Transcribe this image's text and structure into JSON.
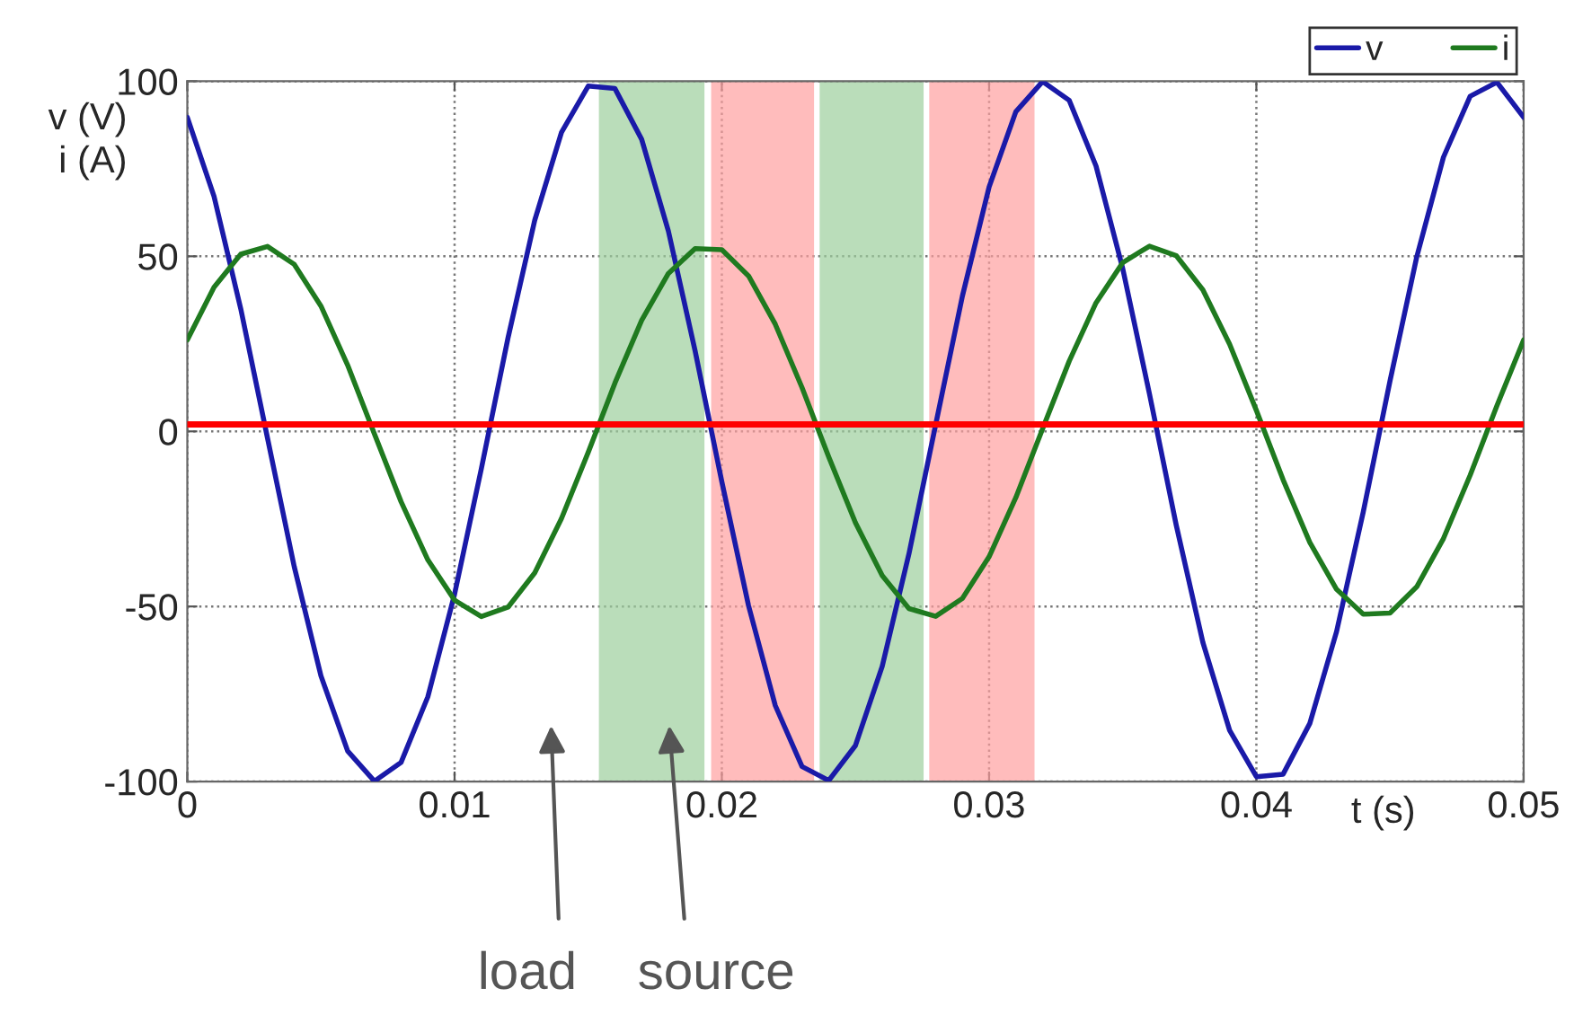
{
  "chart_data": {
    "type": "line",
    "xlabel": "t (s)",
    "ylabel": "v (V)\ni (A)",
    "x": [
      0,
      0.001,
      0.002,
      0.003,
      0.004,
      0.005,
      0.006,
      0.007,
      0.008,
      0.009,
      0.01,
      0.011,
      0.012,
      0.013,
      0.014,
      0.015,
      0.016,
      0.017,
      0.018,
      0.019,
      0.02,
      0.021,
      0.022,
      0.023,
      0.024,
      0.025,
      0.026,
      0.027,
      0.028,
      0.029,
      0.03,
      0.031,
      0.032,
      0.033,
      0.034,
      0.035,
      0.036,
      0.037,
      0.038,
      0.039,
      0.04,
      0.041,
      0.042,
      0.043,
      0.044,
      0.045,
      0.046,
      0.047,
      0.048,
      0.049,
      0.05
    ],
    "series": [
      {
        "name": "v",
        "color": "#1a1aa8",
        "values": [
          89.7,
          67.1,
          35.0,
          -1.9,
          -38.6,
          -69.8,
          -91.3,
          -99.9,
          -94.5,
          -75.8,
          -46.5,
          -10.7,
          26.7,
          60.3,
          85.4,
          98.6,
          97.9,
          83.4,
          57.2,
          23.0,
          -14.4,
          -49.8,
          -78.3,
          -95.7,
          -99.7,
          -89.7,
          -67.1,
          -35.0,
          1.9,
          38.6,
          69.8,
          91.3,
          99.9,
          94.5,
          75.8,
          46.5,
          10.7,
          -26.7,
          -60.3,
          -85.4,
          -98.6,
          -97.9,
          -83.4,
          -57.2,
          -23.0,
          14.4,
          49.8,
          78.3,
          95.7,
          99.7,
          89.7
        ]
      },
      {
        "name": "i",
        "color": "#1f7a1f",
        "values": [
          26.1,
          41.2,
          50.6,
          52.8,
          47.7,
          35.8,
          18.9,
          -0.7,
          -20.1,
          -36.7,
          -48.2,
          -52.9,
          -50.2,
          -40.4,
          -24.9,
          -6.0,
          13.8,
          31.7,
          45.1,
          52.2,
          51.9,
          44.4,
          30.6,
          12.5,
          -7.3,
          -26.1,
          -41.2,
          -50.6,
          -52.8,
          -47.7,
          -35.8,
          -18.9,
          0.7,
          20.1,
          36.7,
          48.2,
          52.9,
          50.2,
          40.4,
          24.9,
          6.0,
          -13.8,
          -31.7,
          -45.1,
          -52.2,
          -51.9,
          -44.4,
          -30.6,
          -12.5,
          7.3,
          26.1
        ]
      }
    ],
    "xlim": [
      0,
      0.05
    ],
    "xticks": [
      0,
      0.01,
      0.02,
      0.03,
      0.04,
      0.05
    ],
    "ylim": [
      -100,
      100
    ],
    "yticks": [
      -100,
      -50,
      0,
      50,
      100
    ],
    "grid": true,
    "legend": "top right",
    "line_style": "solid",
    "ref_lines": [
      {
        "axis": "y",
        "value": 2,
        "color": "#ff0000"
      }
    ],
    "bands": [
      {
        "axis": "x",
        "from": 0.0154,
        "to": 0.01935,
        "color": "#9ccf9c"
      },
      {
        "axis": "x",
        "from": 0.0196,
        "to": 0.02345,
        "color": "#ffa0a0"
      },
      {
        "axis": "x",
        "from": 0.02366,
        "to": 0.02755,
        "color": "#9ccf9c"
      },
      {
        "axis": "x",
        "from": 0.02776,
        "to": 0.0317,
        "color": "#ffa0a0"
      }
    ],
    "annotations": [
      "load",
      "source"
    ]
  }
}
